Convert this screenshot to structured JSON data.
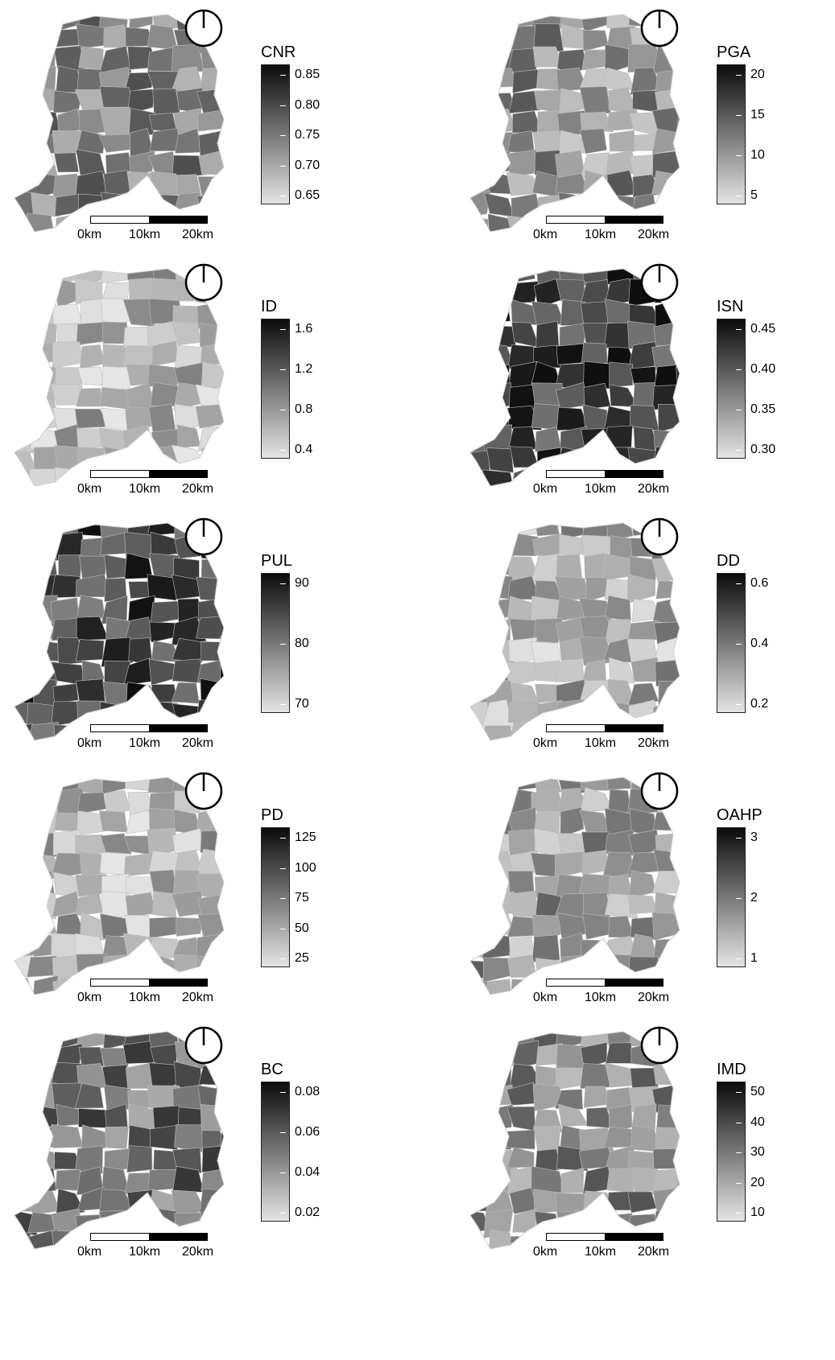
{
  "scale_labels": [
    "0km",
    "10km",
    "20km"
  ],
  "panels": [
    {
      "title": "CNR",
      "ticks": [
        "0.85",
        "0.80",
        "0.75",
        "0.70",
        "0.65"
      ],
      "darkness": 0.48
    },
    {
      "title": "PGA",
      "ticks": [
        "20",
        "15",
        "10",
        "5"
      ],
      "darkness": 0.4
    },
    {
      "title": "ID",
      "ticks": [
        "1.6",
        "1.2",
        "0.8",
        "0.4"
      ],
      "darkness": 0.22
    },
    {
      "title": "ISN",
      "ticks": [
        "0.45",
        "0.40",
        "0.35",
        "0.30"
      ],
      "darkness": 0.78
    },
    {
      "title": "PUL",
      "ticks": [
        "90",
        "80",
        "70"
      ],
      "darkness": 0.74
    },
    {
      "title": "DD",
      "ticks": [
        "0.6",
        "0.4",
        "0.2"
      ],
      "darkness": 0.28
    },
    {
      "title": "PD",
      "ticks": [
        "125",
        "100",
        "75",
        "50",
        "25"
      ],
      "darkness": 0.25
    },
    {
      "title": "OAHP",
      "ticks": [
        "3",
        "2",
        "1"
      ],
      "darkness": 0.36
    },
    {
      "title": "BC",
      "ticks": [
        "0.08",
        "0.06",
        "0.04",
        "0.02"
      ],
      "darkness": 0.55
    },
    {
      "title": "IMD",
      "ticks": [
        "50",
        "40",
        "30",
        "20",
        "10"
      ],
      "darkness": 0.45
    }
  ]
}
